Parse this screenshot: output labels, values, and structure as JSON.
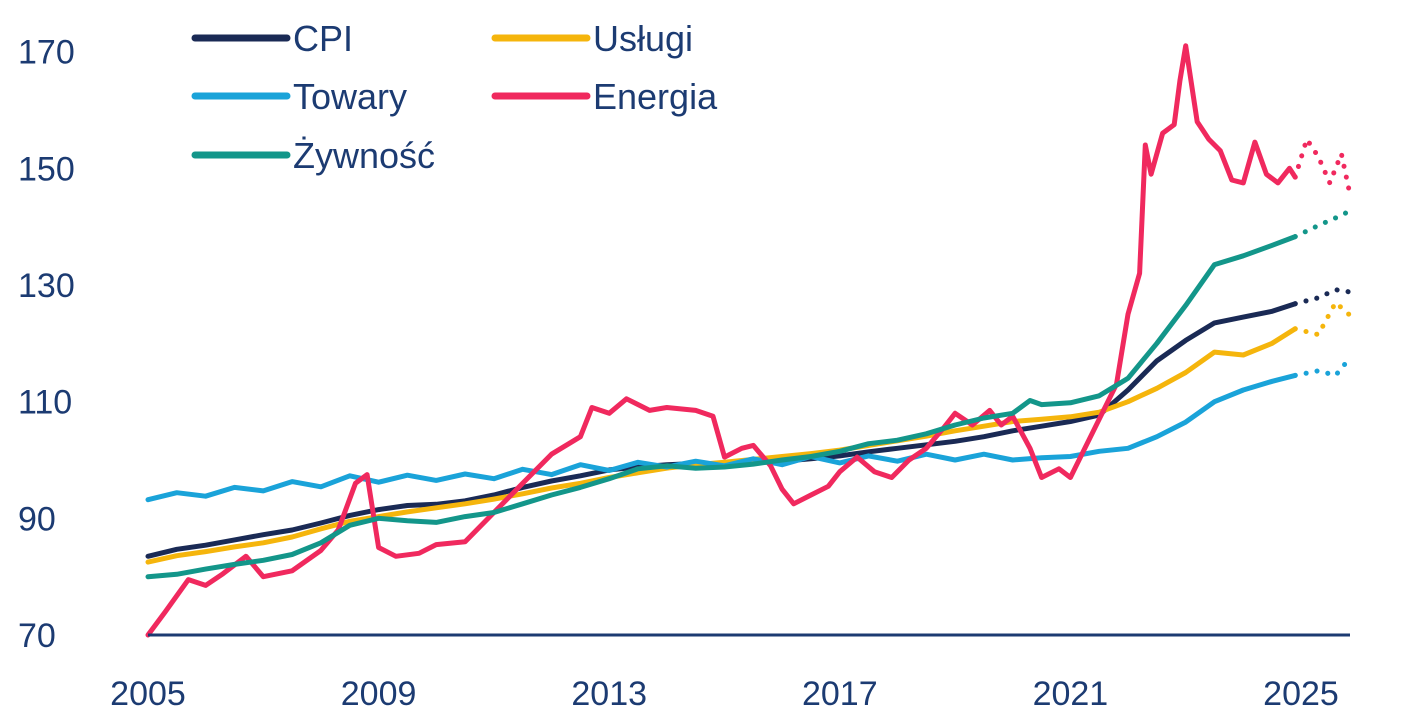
{
  "chart_data": {
    "type": "line",
    "title": "",
    "xlabel": "",
    "ylabel": "",
    "xlim": [
      2005,
      2025.85
    ],
    "ylim": [
      70,
      172
    ],
    "x_ticks": [
      "2005",
      "2009",
      "2013",
      "2017",
      "2021",
      "2025"
    ],
    "y_ticks": [
      "70",
      "90",
      "110",
      "130",
      "150",
      "170"
    ],
    "grid": false,
    "legend": "top-left, two columns",
    "forecast_start": 2024.9,
    "series": [
      {
        "name": "CPI",
        "color": "#1a2a55",
        "points": [
          [
            2005.0,
            83.5
          ],
          [
            2005.5,
            84.7
          ],
          [
            2006.0,
            85.4
          ],
          [
            2006.5,
            86.3
          ],
          [
            2007.0,
            87.2
          ],
          [
            2007.5,
            88.0
          ],
          [
            2008.0,
            89.2
          ],
          [
            2008.5,
            90.5
          ],
          [
            2009.0,
            91.5
          ],
          [
            2009.5,
            92.2
          ],
          [
            2010.0,
            92.4
          ],
          [
            2010.5,
            93.0
          ],
          [
            2011.0,
            94.0
          ],
          [
            2011.5,
            95.3
          ],
          [
            2012.0,
            96.4
          ],
          [
            2012.5,
            97.3
          ],
          [
            2013.0,
            98.3
          ],
          [
            2013.5,
            98.8
          ],
          [
            2014.0,
            99.2
          ],
          [
            2014.5,
            99.4
          ],
          [
            2015.0,
            99.3
          ],
          [
            2015.5,
            99.5
          ],
          [
            2016.0,
            99.8
          ],
          [
            2016.5,
            100.2
          ],
          [
            2017.0,
            100.7
          ],
          [
            2017.5,
            101.4
          ],
          [
            2018.0,
            102.0
          ],
          [
            2018.5,
            102.6
          ],
          [
            2019.0,
            103.2
          ],
          [
            2019.5,
            104.0
          ],
          [
            2020.0,
            105.0
          ],
          [
            2020.5,
            105.8
          ],
          [
            2021.0,
            106.6
          ],
          [
            2021.5,
            107.7
          ],
          [
            2022.0,
            112.0
          ],
          [
            2022.5,
            117.0
          ],
          [
            2023.0,
            120.5
          ],
          [
            2023.5,
            123.5
          ],
          [
            2024.0,
            124.5
          ],
          [
            2024.5,
            125.5
          ],
          [
            2024.9,
            126.8
          ],
          [
            2025.3,
            127.8
          ],
          [
            2025.6,
            129.2
          ],
          [
            2025.85,
            128.8
          ]
        ]
      },
      {
        "name": "Usługi",
        "color": "#f5b50c",
        "points": [
          [
            2005.0,
            82.5
          ],
          [
            2005.5,
            83.6
          ],
          [
            2006.0,
            84.3
          ],
          [
            2006.5,
            85.1
          ],
          [
            2007.0,
            85.8
          ],
          [
            2007.5,
            86.8
          ],
          [
            2008.0,
            88.2
          ],
          [
            2008.5,
            89.5
          ],
          [
            2009.0,
            90.3
          ],
          [
            2009.5,
            91.1
          ],
          [
            2010.0,
            91.8
          ],
          [
            2010.5,
            92.5
          ],
          [
            2011.0,
            93.3
          ],
          [
            2011.5,
            94.2
          ],
          [
            2012.0,
            95.2
          ],
          [
            2012.5,
            96.0
          ],
          [
            2013.0,
            97.0
          ],
          [
            2013.5,
            97.8
          ],
          [
            2014.0,
            98.6
          ],
          [
            2014.5,
            99.2
          ],
          [
            2015.0,
            99.6
          ],
          [
            2015.5,
            100.1
          ],
          [
            2016.0,
            100.6
          ],
          [
            2016.5,
            101.1
          ],
          [
            2017.0,
            101.7
          ],
          [
            2017.5,
            102.5
          ],
          [
            2018.0,
            103.3
          ],
          [
            2018.5,
            104.1
          ],
          [
            2019.0,
            105.0
          ],
          [
            2019.5,
            105.8
          ],
          [
            2020.0,
            106.6
          ],
          [
            2020.5,
            107.0
          ],
          [
            2021.0,
            107.4
          ],
          [
            2021.5,
            108.2
          ],
          [
            2022.0,
            110.0
          ],
          [
            2022.5,
            112.3
          ],
          [
            2023.0,
            115.0
          ],
          [
            2023.5,
            118.5
          ],
          [
            2024.0,
            118.0
          ],
          [
            2024.5,
            120.0
          ],
          [
            2024.9,
            122.5
          ],
          [
            2025.3,
            121.5
          ],
          [
            2025.6,
            127.0
          ],
          [
            2025.85,
            124.8
          ]
        ]
      },
      {
        "name": "Towary",
        "color": "#1aa3d9",
        "points": [
          [
            2005.0,
            93.2
          ],
          [
            2005.5,
            94.4
          ],
          [
            2006.0,
            93.8
          ],
          [
            2006.5,
            95.3
          ],
          [
            2007.0,
            94.7
          ],
          [
            2007.5,
            96.3
          ],
          [
            2008.0,
            95.4
          ],
          [
            2008.5,
            97.3
          ],
          [
            2009.0,
            96.2
          ],
          [
            2009.5,
            97.4
          ],
          [
            2010.0,
            96.5
          ],
          [
            2010.5,
            97.6
          ],
          [
            2011.0,
            96.8
          ],
          [
            2011.5,
            98.4
          ],
          [
            2012.0,
            97.5
          ],
          [
            2012.5,
            99.2
          ],
          [
            2013.0,
            98.2
          ],
          [
            2013.5,
            99.6
          ],
          [
            2014.0,
            98.8
          ],
          [
            2014.5,
            99.8
          ],
          [
            2015.0,
            99.0
          ],
          [
            2015.5,
            100.2
          ],
          [
            2016.0,
            99.2
          ],
          [
            2016.5,
            100.6
          ],
          [
            2017.0,
            99.5
          ],
          [
            2017.5,
            100.7
          ],
          [
            2018.0,
            99.8
          ],
          [
            2018.5,
            101.0
          ],
          [
            2019.0,
            100.0
          ],
          [
            2019.5,
            101.0
          ],
          [
            2020.0,
            100.0
          ],
          [
            2020.5,
            100.4
          ],
          [
            2021.0,
            100.6
          ],
          [
            2021.5,
            101.5
          ],
          [
            2022.0,
            102.0
          ],
          [
            2022.5,
            104.0
          ],
          [
            2023.0,
            106.5
          ],
          [
            2023.5,
            110.0
          ],
          [
            2024.0,
            112.0
          ],
          [
            2024.5,
            113.5
          ],
          [
            2024.9,
            114.5
          ],
          [
            2025.3,
            115.3
          ],
          [
            2025.6,
            114.5
          ],
          [
            2025.85,
            117.5
          ]
        ]
      },
      {
        "name": "Energia",
        "color": "#f0295e",
        "points": [
          [
            2005.0,
            70.0
          ],
          [
            2005.3,
            74.0
          ],
          [
            2005.7,
            79.5
          ],
          [
            2006.0,
            78.5
          ],
          [
            2006.3,
            80.5
          ],
          [
            2006.7,
            83.5
          ],
          [
            2007.0,
            80.0
          ],
          [
            2007.5,
            81.0
          ],
          [
            2008.0,
            84.5
          ],
          [
            2008.3,
            88.0
          ],
          [
            2008.6,
            96.0
          ],
          [
            2008.8,
            97.5
          ],
          [
            2009.0,
            85.0
          ],
          [
            2009.3,
            83.5
          ],
          [
            2009.7,
            84.0
          ],
          [
            2010.0,
            85.5
          ],
          [
            2010.5,
            86.0
          ],
          [
            2011.0,
            91.0
          ],
          [
            2011.5,
            96.0
          ],
          [
            2012.0,
            101.0
          ],
          [
            2012.5,
            104.0
          ],
          [
            2012.7,
            109.0
          ],
          [
            2013.0,
            108.0
          ],
          [
            2013.3,
            110.5
          ],
          [
            2013.7,
            108.5
          ],
          [
            2014.0,
            109.0
          ],
          [
            2014.5,
            108.5
          ],
          [
            2014.8,
            107.5
          ],
          [
            2015.0,
            100.5
          ],
          [
            2015.3,
            102.0
          ],
          [
            2015.5,
            102.5
          ],
          [
            2015.8,
            99.0
          ],
          [
            2016.0,
            95.0
          ],
          [
            2016.2,
            92.5
          ],
          [
            2016.5,
            94.0
          ],
          [
            2016.8,
            95.5
          ],
          [
            2017.0,
            98.0
          ],
          [
            2017.3,
            100.5
          ],
          [
            2017.6,
            98.0
          ],
          [
            2017.9,
            97.0
          ],
          [
            2018.2,
            100.0
          ],
          [
            2018.5,
            102.0
          ],
          [
            2018.8,
            105.5
          ],
          [
            2019.0,
            108.0
          ],
          [
            2019.3,
            106.0
          ],
          [
            2019.6,
            108.5
          ],
          [
            2019.8,
            106.0
          ],
          [
            2020.0,
            107.5
          ],
          [
            2020.3,
            102.0
          ],
          [
            2020.5,
            97.0
          ],
          [
            2020.8,
            98.5
          ],
          [
            2021.0,
            97.0
          ],
          [
            2021.2,
            101.0
          ],
          [
            2021.5,
            107.0
          ],
          [
            2021.8,
            113.0
          ],
          [
            2022.0,
            125.0
          ],
          [
            2022.2,
            132.0
          ],
          [
            2022.3,
            154.0
          ],
          [
            2022.4,
            149.0
          ],
          [
            2022.6,
            156.0
          ],
          [
            2022.8,
            157.5
          ],
          [
            2022.9,
            165.0
          ],
          [
            2023.0,
            171.0
          ],
          [
            2023.2,
            158.0
          ],
          [
            2023.4,
            155.0
          ],
          [
            2023.6,
            153.0
          ],
          [
            2023.8,
            148.0
          ],
          [
            2024.0,
            147.5
          ],
          [
            2024.2,
            154.5
          ],
          [
            2024.4,
            149.0
          ],
          [
            2024.6,
            147.5
          ],
          [
            2024.8,
            150.0
          ],
          [
            2024.9,
            148.5
          ],
          [
            2025.1,
            155.0
          ],
          [
            2025.3,
            152.0
          ],
          [
            2025.5,
            147.5
          ],
          [
            2025.7,
            152.5
          ],
          [
            2025.85,
            145.5
          ]
        ]
      },
      {
        "name": "Żywność",
        "color": "#13968a",
        "points": [
          [
            2005.0,
            80.0
          ],
          [
            2005.5,
            80.4
          ],
          [
            2006.0,
            81.3
          ],
          [
            2006.5,
            82.1
          ],
          [
            2007.0,
            82.8
          ],
          [
            2007.5,
            83.8
          ],
          [
            2008.0,
            85.8
          ],
          [
            2008.5,
            88.8
          ],
          [
            2009.0,
            90.0
          ],
          [
            2009.5,
            89.6
          ],
          [
            2010.0,
            89.3
          ],
          [
            2010.5,
            90.3
          ],
          [
            2011.0,
            91.0
          ],
          [
            2011.5,
            92.5
          ],
          [
            2012.0,
            94.0
          ],
          [
            2012.5,
            95.3
          ],
          [
            2013.0,
            96.8
          ],
          [
            2013.5,
            98.5
          ],
          [
            2014.0,
            99.0
          ],
          [
            2014.5,
            98.6
          ],
          [
            2015.0,
            98.8
          ],
          [
            2015.5,
            99.3
          ],
          [
            2016.0,
            100.0
          ],
          [
            2016.5,
            100.6
          ],
          [
            2017.0,
            101.5
          ],
          [
            2017.5,
            102.8
          ],
          [
            2018.0,
            103.4
          ],
          [
            2018.5,
            104.5
          ],
          [
            2019.0,
            106.0
          ],
          [
            2019.5,
            107.2
          ],
          [
            2020.0,
            108.0
          ],
          [
            2020.3,
            110.2
          ],
          [
            2020.5,
            109.5
          ],
          [
            2021.0,
            109.8
          ],
          [
            2021.5,
            111.0
          ],
          [
            2022.0,
            114.0
          ],
          [
            2022.5,
            120.0
          ],
          [
            2023.0,
            126.5
          ],
          [
            2023.5,
            133.5
          ],
          [
            2024.0,
            135.0
          ],
          [
            2024.5,
            136.8
          ],
          [
            2024.9,
            138.3
          ],
          [
            2025.3,
            140.2
          ],
          [
            2025.6,
            141.5
          ],
          [
            2025.85,
            142.7
          ]
        ]
      }
    ]
  }
}
